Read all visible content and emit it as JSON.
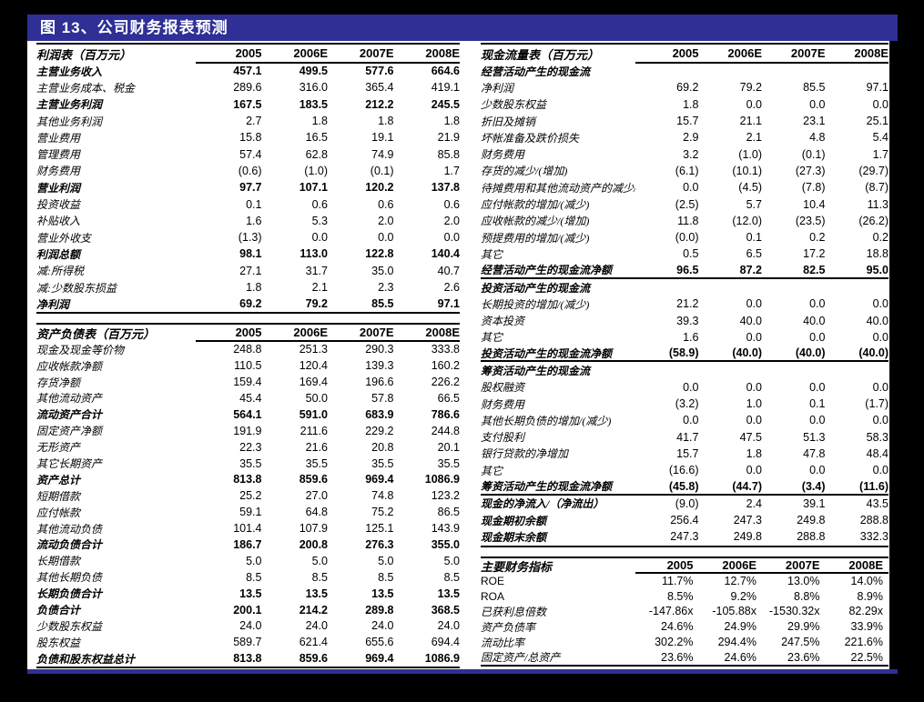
{
  "header": {
    "title": "图 13、公司财务报表预测"
  },
  "colors": {
    "accent_navy": "#2f2f96",
    "background": "#000000",
    "panel": "#ffffff"
  },
  "tables": {
    "income": {
      "title": "利润表（百万元）",
      "columns": [
        "2005",
        "2006E",
        "2007E",
        "2008E"
      ],
      "rows": [
        {
          "label": "主营业务收入",
          "values": [
            "457.1",
            "499.5",
            "577.6",
            "664.6"
          ],
          "b": true
        },
        {
          "label": "主营业务成本、税金",
          "values": [
            "289.6",
            "316.0",
            "365.4",
            "419.1"
          ]
        },
        {
          "label": "主营业务利润",
          "values": [
            "167.5",
            "183.5",
            "212.2",
            "245.5"
          ],
          "b": true
        },
        {
          "label": "其他业务利润",
          "values": [
            "2.7",
            "1.8",
            "1.8",
            "1.8"
          ]
        },
        {
          "label": "营业费用",
          "values": [
            "15.8",
            "16.5",
            "19.1",
            "21.9"
          ]
        },
        {
          "label": "管理费用",
          "values": [
            "57.4",
            "62.8",
            "74.9",
            "85.8"
          ]
        },
        {
          "label": "财务费用",
          "values": [
            "(0.6)",
            "(1.0)",
            "(0.1)",
            "1.7"
          ]
        },
        {
          "label": "营业利润",
          "values": [
            "97.7",
            "107.1",
            "120.2",
            "137.8"
          ],
          "b": true
        },
        {
          "label": "投资收益",
          "values": [
            "0.1",
            "0.6",
            "0.6",
            "0.6"
          ]
        },
        {
          "label": "补贴收入",
          "values": [
            "1.6",
            "5.3",
            "2.0",
            "2.0"
          ]
        },
        {
          "label": "营业外收支",
          "values": [
            "(1.3)",
            "0.0",
            "0.0",
            "0.0"
          ]
        },
        {
          "label": "利润总额",
          "values": [
            "98.1",
            "113.0",
            "122.8",
            "140.4"
          ],
          "b": true
        },
        {
          "label": "减:所得税",
          "values": [
            "27.1",
            "31.7",
            "35.0",
            "40.7"
          ]
        },
        {
          "label": "减:少数股东损益",
          "values": [
            "1.8",
            "2.1",
            "2.3",
            "2.6"
          ]
        },
        {
          "label": "净利润",
          "values": [
            "69.2",
            "79.2",
            "85.5",
            "97.1"
          ],
          "b": true
        }
      ]
    },
    "balance": {
      "title": "资产负债表（百万元）",
      "columns": [
        "2005",
        "2006E",
        "2007E",
        "2008E"
      ],
      "rows": [
        {
          "label": "现金及现金等价物",
          "values": [
            "248.8",
            "251.3",
            "290.3",
            "333.8"
          ]
        },
        {
          "label": "应收帐款净额",
          "values": [
            "110.5",
            "120.4",
            "139.3",
            "160.2"
          ]
        },
        {
          "label": "存货净额",
          "values": [
            "159.4",
            "169.4",
            "196.6",
            "226.2"
          ]
        },
        {
          "label": "其他流动资产",
          "values": [
            "45.4",
            "50.0",
            "57.8",
            "66.5"
          ]
        },
        {
          "label": "流动资产合计",
          "values": [
            "564.1",
            "591.0",
            "683.9",
            "786.6"
          ],
          "b": true
        },
        {
          "label": "固定资产净额",
          "values": [
            "191.9",
            "211.6",
            "229.2",
            "244.8"
          ]
        },
        {
          "label": "无形资产",
          "values": [
            "22.3",
            "21.6",
            "20.8",
            "20.1"
          ]
        },
        {
          "label": "其它长期资产",
          "values": [
            "35.5",
            "35.5",
            "35.5",
            "35.5"
          ]
        },
        {
          "label": "资产总计",
          "values": [
            "813.8",
            "859.6",
            "969.4",
            "1086.9"
          ],
          "b": true
        },
        {
          "label": "短期借款",
          "values": [
            "25.2",
            "27.0",
            "74.8",
            "123.2"
          ]
        },
        {
          "label": "应付帐款",
          "values": [
            "59.1",
            "64.8",
            "75.2",
            "86.5"
          ]
        },
        {
          "label": "其他流动负债",
          "values": [
            "101.4",
            "107.9",
            "125.1",
            "143.9"
          ]
        },
        {
          "label": "流动负债合计",
          "values": [
            "186.7",
            "200.8",
            "276.3",
            "355.0"
          ],
          "b": true
        },
        {
          "label": "长期借款",
          "values": [
            "5.0",
            "5.0",
            "5.0",
            "5.0"
          ]
        },
        {
          "label": "其他长期负债",
          "values": [
            "8.5",
            "8.5",
            "8.5",
            "8.5"
          ]
        },
        {
          "label": "长期负债合计",
          "values": [
            "13.5",
            "13.5",
            "13.5",
            "13.5"
          ],
          "b": true
        },
        {
          "label": "负债合计",
          "values": [
            "200.1",
            "214.2",
            "289.8",
            "368.5"
          ],
          "b": true
        },
        {
          "label": "少数股东权益",
          "values": [
            "24.0",
            "24.0",
            "24.0",
            "24.0"
          ]
        },
        {
          "label": "股东权益",
          "values": [
            "589.7",
            "621.4",
            "655.6",
            "694.4"
          ]
        },
        {
          "label": "负债和股东权益总计",
          "values": [
            "813.8",
            "859.6",
            "969.4",
            "1086.9"
          ],
          "b": true
        }
      ]
    },
    "cashflow": {
      "title": "现金流量表（百万元）",
      "columns": [
        "2005",
        "2006E",
        "2007E",
        "2008E"
      ],
      "rows": [
        {
          "label": "经营活动产生的现金流",
          "sec": true
        },
        {
          "label": "净利润",
          "values": [
            "69.2",
            "79.2",
            "85.5",
            "97.1"
          ]
        },
        {
          "label": "少数股东权益",
          "values": [
            "1.8",
            "0.0",
            "0.0",
            "0.0"
          ]
        },
        {
          "label": "折旧及摊销",
          "values": [
            "15.7",
            "21.1",
            "23.1",
            "25.1"
          ]
        },
        {
          "label": "坏帐准备及跌价损失",
          "values": [
            "2.9",
            "2.1",
            "4.8",
            "5.4"
          ]
        },
        {
          "label": "财务费用",
          "values": [
            "3.2",
            "(1.0)",
            "(0.1)",
            "1.7"
          ]
        },
        {
          "label": "存货的减少/(增加)",
          "values": [
            "(6.1)",
            "(10.1)",
            "(27.3)",
            "(29.7)"
          ]
        },
        {
          "label": "待摊费用和其他流动资产的减少/(增加)",
          "values": [
            "0.0",
            "(4.5)",
            "(7.8)",
            "(8.7)"
          ]
        },
        {
          "label": "应付帐款的增加/(减少)",
          "values": [
            "(2.5)",
            "5.7",
            "10.4",
            "11.3"
          ]
        },
        {
          "label": "应收帐款的减少/(增加)",
          "values": [
            "11.8",
            "(12.0)",
            "(23.5)",
            "(26.2)"
          ]
        },
        {
          "label": "预提费用的增加/(减少)",
          "values": [
            "(0.0)",
            "0.1",
            "0.2",
            "0.2"
          ]
        },
        {
          "label": "其它",
          "values": [
            "0.5",
            "6.5",
            "17.2",
            "18.8"
          ]
        },
        {
          "label": "经营活动产生的现金流净额",
          "values": [
            "96.5",
            "87.2",
            "82.5",
            "95.0"
          ],
          "b": true,
          "rule": true
        },
        {
          "label": "投资活动产生的现金流",
          "sec": true
        },
        {
          "label": "长期投资的增加/(减少)",
          "values": [
            "21.2",
            "0.0",
            "0.0",
            "0.0"
          ]
        },
        {
          "label": "资本投资",
          "values": [
            "39.3",
            "40.0",
            "40.0",
            "40.0"
          ]
        },
        {
          "label": "其它",
          "values": [
            "1.6",
            "0.0",
            "0.0",
            "0.0"
          ]
        },
        {
          "label": "投资活动产生的现金流净额",
          "values": [
            "(58.9)",
            "(40.0)",
            "(40.0)",
            "(40.0)"
          ],
          "b": true,
          "rule": true
        },
        {
          "label": "筹资活动产生的现金流",
          "sec": true
        },
        {
          "label": "股权融资",
          "values": [
            "0.0",
            "0.0",
            "0.0",
            "0.0"
          ]
        },
        {
          "label": "财务费用",
          "values": [
            "(3.2)",
            "1.0",
            "0.1",
            "(1.7)"
          ]
        },
        {
          "label": "其他长期负债的增加/(减少)",
          "values": [
            "0.0",
            "0.0",
            "0.0",
            "0.0"
          ]
        },
        {
          "label": "支付股利",
          "values": [
            "41.7",
            "47.5",
            "51.3",
            "58.3"
          ]
        },
        {
          "label": "银行贷款的净增加",
          "values": [
            "15.7",
            "1.8",
            "47.8",
            "48.4"
          ]
        },
        {
          "label": "其它",
          "values": [
            "(16.6)",
            "0.0",
            "0.0",
            "0.0"
          ]
        },
        {
          "label": "筹资活动产生的现金流净额",
          "values": [
            "(45.8)",
            "(44.7)",
            "(3.4)",
            "(11.6)"
          ],
          "b": true,
          "rule": true
        },
        {
          "label": "现金的净流入/（净流出）",
          "values": [
            "(9.0)",
            "2.4",
            "39.1",
            "43.5"
          ],
          "bl": true
        },
        {
          "label": "现金期初余额",
          "values": [
            "256.4",
            "247.3",
            "249.8",
            "288.8"
          ],
          "bl": true
        },
        {
          "label": "现金期末余额",
          "values": [
            "247.3",
            "249.8",
            "288.8",
            "332.3"
          ],
          "bl": true
        }
      ]
    },
    "indicators": {
      "title": "主要财务指标",
      "columns": [
        "2005",
        "2006E",
        "2007E",
        "2008E"
      ],
      "rows": [
        {
          "label": "ROE",
          "values": [
            "11.7%",
            "12.7%",
            "13.0%",
            "14.0%"
          ],
          "plain": true
        },
        {
          "label": "ROA",
          "values": [
            "8.5%",
            "9.2%",
            "8.8%",
            "8.9%"
          ],
          "plain": true
        },
        {
          "label": "已获利息倍数",
          "values": [
            "-147.86x",
            "-105.88x",
            "-1530.32x",
            "82.29x"
          ]
        },
        {
          "label": "资产负债率",
          "values": [
            "24.6%",
            "24.9%",
            "29.9%",
            "33.9%"
          ]
        },
        {
          "label": "流动比率",
          "values": [
            "302.2%",
            "294.4%",
            "247.5%",
            "221.6%"
          ]
        },
        {
          "label": "固定资产/总资产",
          "values": [
            "23.6%",
            "24.6%",
            "23.6%",
            "22.5%"
          ]
        }
      ]
    }
  }
}
